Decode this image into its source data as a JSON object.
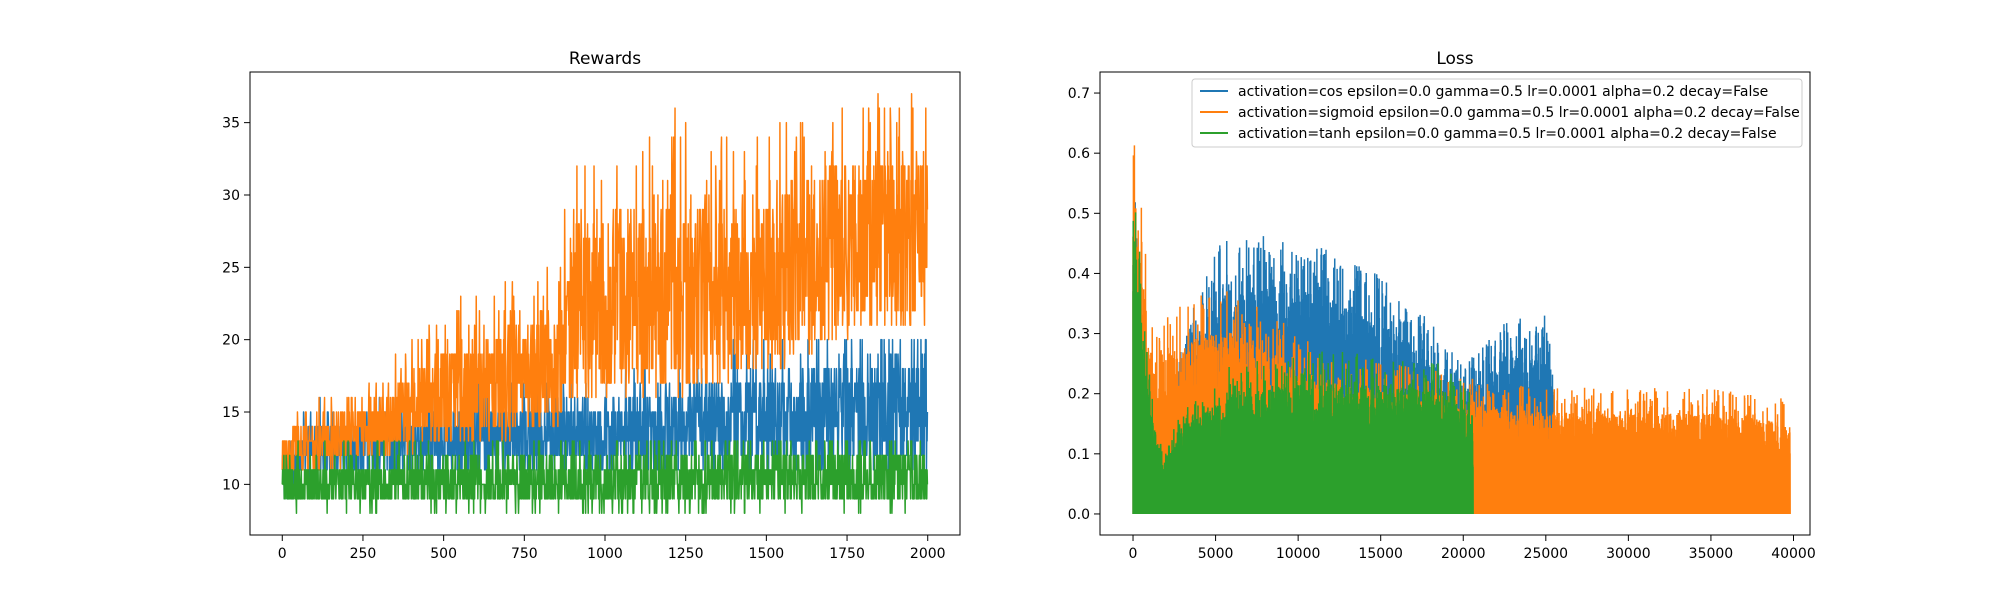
{
  "chart_data": [
    {
      "type": "line",
      "title": "Rewards",
      "xlabel": "",
      "ylabel": "",
      "xlim": [
        -100,
        2100
      ],
      "ylim": [
        6.5,
        38.5
      ],
      "xticks": [
        0,
        250,
        500,
        750,
        1000,
        1250,
        1500,
        1750,
        2000
      ],
      "yticks": [
        10,
        15,
        20,
        25,
        30,
        35
      ],
      "grid": false,
      "legend": "none",
      "n_points": 2000,
      "series": [
        {
          "color": "#1f77b4",
          "profile": [
            [
              0,
              10.5,
              2.0
            ],
            [
              100,
              12.5,
              1.8
            ],
            [
              450,
              13.0,
              2.2
            ],
            [
              1000,
              13.5,
              2.5
            ],
            [
              1550,
              14.5,
              3.5
            ],
            [
              2000,
              15.0,
              4.0
            ]
          ],
          "range": [
            9,
            20
          ]
        },
        {
          "color": "#ff7f0e",
          "profile": [
            [
              0,
              12.0,
              1.5
            ],
            [
              300,
              14.0,
              2.0
            ],
            [
              500,
              16.0,
              3.5
            ],
            [
              850,
              18.0,
              4.0
            ],
            [
              900,
              22.0,
              6.0
            ],
            [
              1200,
              23.0,
              7.0
            ],
            [
              1500,
              23.5,
              6.0
            ],
            [
              1700,
              26.0,
              6.0
            ],
            [
              2000,
              27.0,
              6.0
            ]
          ],
          "range": [
            10,
            37
          ]
        },
        {
          "color": "#2ca02c",
          "profile": [
            [
              0,
              10.0,
              1.5
            ],
            [
              1000,
              10.0,
              1.8
            ],
            [
              2000,
              10.5,
              2.0
            ]
          ],
          "range": [
            8,
            13
          ]
        }
      ]
    },
    {
      "type": "line",
      "title": "Loss",
      "xlabel": "",
      "ylabel": "",
      "xlim": [
        -2000,
        41000
      ],
      "ylim": [
        -0.035,
        0.735
      ],
      "xticks": [
        0,
        5000,
        10000,
        15000,
        20000,
        25000,
        30000,
        35000,
        40000
      ],
      "yticks": [
        "0.0",
        "0.1",
        "0.2",
        "0.3",
        "0.4",
        "0.5",
        "0.6",
        "0.7"
      ],
      "grid": false,
      "legend": "top-right",
      "series": [
        {
          "name": "activation=cos epsilon=0.0 gamma=0.5 lr=0.0001 alpha=0.2 decay=False",
          "color": "#1f77b4",
          "x_end": 25500,
          "envelope": [
            [
              0,
              0.6
            ],
            [
              600,
              0.25
            ],
            [
              1500,
              0.05
            ],
            [
              3000,
              0.3
            ],
            [
              5000,
              0.45
            ],
            [
              8000,
              0.47
            ],
            [
              12000,
              0.44
            ],
            [
              15000,
              0.4
            ],
            [
              18000,
              0.32
            ],
            [
              20000,
              0.25
            ],
            [
              23000,
              0.33
            ],
            [
              25000,
              0.33
            ],
            [
              25500,
              0.25
            ]
          ],
          "spikiness": 1.0
        },
        {
          "name": "activation=sigmoid epsilon=0.0 gamma=0.5 lr=0.0001 alpha=0.2 decay=False",
          "color": "#ff7f0e",
          "x_end": 39800,
          "envelope": [
            [
              0,
              0.7
            ],
            [
              400,
              0.55
            ],
            [
              1200,
              0.3
            ],
            [
              2000,
              0.33
            ],
            [
              4000,
              0.37
            ],
            [
              6000,
              0.38
            ],
            [
              9000,
              0.32
            ],
            [
              12000,
              0.27
            ],
            [
              16000,
              0.25
            ],
            [
              20000,
              0.23
            ],
            [
              25000,
              0.21
            ],
            [
              30000,
              0.21
            ],
            [
              35000,
              0.21
            ],
            [
              39800,
              0.19
            ]
          ],
          "spikiness": 0.4
        },
        {
          "name": "activation=tanh epsilon=0.0 gamma=0.5 lr=0.0001 alpha=0.2 decay=False",
          "color": "#2ca02c",
          "x_end": 20600,
          "envelope": [
            [
              0,
              0.59
            ],
            [
              300,
              0.5
            ],
            [
              900,
              0.25
            ],
            [
              1800,
              0.1
            ],
            [
              3000,
              0.18
            ],
            [
              6000,
              0.25
            ],
            [
              10000,
              0.27
            ],
            [
              15000,
              0.27
            ],
            [
              18000,
              0.26
            ],
            [
              20600,
              0.21
            ]
          ],
          "spikiness": 0.3
        }
      ]
    }
  ]
}
